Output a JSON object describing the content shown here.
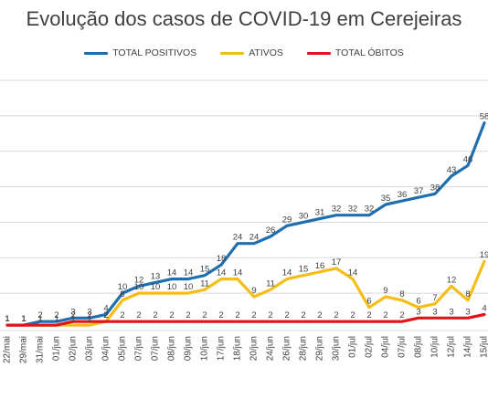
{
  "chart_data": {
    "type": "line",
    "title": "Evolução dos casos de COVID-19 em Cerejeiras",
    "xlabel": "",
    "ylabel": "",
    "ylim": [
      0,
      70
    ],
    "grid": true,
    "legend_position": "top",
    "categories": [
      "22/mai",
      "29/mai",
      "31/mai",
      "01/jun",
      "02/jun",
      "03/jun",
      "04/jun",
      "05/jun",
      "07/jun",
      "07/jun",
      "08/jun",
      "09/jun",
      "10/jun",
      "17/jun",
      "18/jun",
      "20/jun",
      "24/jun",
      "26/jun",
      "28/jun",
      "29/jun",
      "30/jun",
      "01/jul",
      "02/jul",
      "04/jul",
      "07/jul",
      "08/jul",
      "10/jul",
      "12/jul",
      "14/jul",
      "15/jul"
    ],
    "series": [
      {
        "name": "TOTAL POSITIVOS",
        "color": "#1f6fb0",
        "values": [
          1,
          1,
          2,
          2,
          3,
          3,
          4,
          10,
          12,
          13,
          14,
          14,
          15,
          18,
          24,
          24,
          26,
          29,
          30,
          31,
          32,
          32,
          32,
          35,
          36,
          37,
          38,
          43,
          46,
          58
        ]
      },
      {
        "name": "ATIVOS",
        "color": "#f5bd17",
        "values": [
          1,
          1,
          1,
          1,
          1,
          1,
          2,
          8,
          10,
          10,
          10,
          10,
          11,
          14,
          14,
          9,
          11,
          14,
          15,
          16,
          17,
          14,
          6,
          9,
          8,
          6,
          7,
          12,
          8,
          19
        ]
      },
      {
        "name": "TOTAL ÓBITOS",
        "color": "#e3131b",
        "values": [
          1,
          1,
          1,
          1,
          2,
          2,
          2,
          2,
          2,
          2,
          2,
          2,
          2,
          2,
          2,
          2,
          2,
          2,
          2,
          2,
          2,
          2,
          2,
          2,
          2,
          3,
          3,
          3,
          3,
          4
        ]
      }
    ],
    "label_colors": {
      "text": "#404040",
      "grid": "#d9d9d9"
    }
  }
}
